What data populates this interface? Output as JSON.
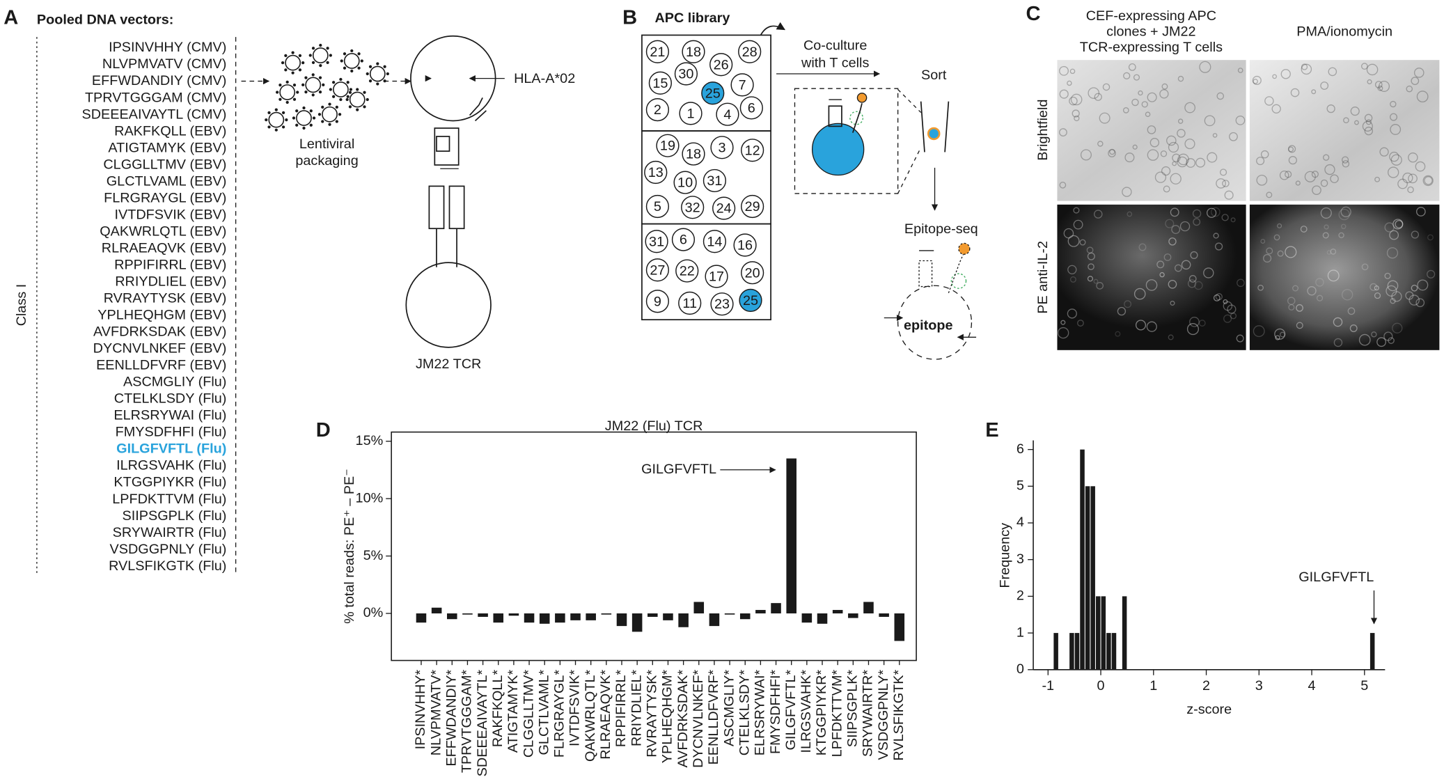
{
  "panels": {
    "A": {
      "letter": "A",
      "title": "Pooled DNA vectors:",
      "side_label": "Class I",
      "peptides": [
        {
          "text": "IPSINVHHY (CMV)"
        },
        {
          "text": "NLVPMVATV (CMV)"
        },
        {
          "text": "EFFWDANDIY (CMV)"
        },
        {
          "text": "TPRVTGGGAM (CMV)"
        },
        {
          "text": "SDEEEAIVAYTL (CMV)"
        },
        {
          "text": "RAKFKQLL (EBV)"
        },
        {
          "text": "ATIGTAMYK (EBV)"
        },
        {
          "text": "CLGGLLTMV (EBV)"
        },
        {
          "text": "GLCTLVAML (EBV)"
        },
        {
          "text": "FLRGRAYGL (EBV)"
        },
        {
          "text": "IVTDFSVIK (EBV)"
        },
        {
          "text": "QAKWRLQTL (EBV)"
        },
        {
          "text": "RLRAEAQVK (EBV)"
        },
        {
          "text": "RPPIFIRRL (EBV)"
        },
        {
          "text": "RRIYDLIEL (EBV)"
        },
        {
          "text": "RVRAYTYSK (EBV)"
        },
        {
          "text": "YPLHEQHGM (EBV)"
        },
        {
          "text": "AVFDRKSDAK (EBV)"
        },
        {
          "text": "DYCNVLNKEF (EBV)"
        },
        {
          "text": "EENLLDFVRF (EBV)"
        },
        {
          "text": "ASCMGLIY (Flu)"
        },
        {
          "text": "CTELKLSDY (Flu)"
        },
        {
          "text": "ELRSRYWAI (Flu)"
        },
        {
          "text": "FMYSDFHFI (Flu)"
        },
        {
          "text": "GILGFVFTL (Flu)",
          "color": "#29a3dc"
        },
        {
          "text": "ILRGSVAHK (Flu)"
        },
        {
          "text": "KTGGPIYKR (Flu)"
        },
        {
          "text": "LPFDKTTVM (Flu)"
        },
        {
          "text": "SIIPSGPLK (Flu)"
        },
        {
          "text": "SRYWAIRTR (Flu)"
        },
        {
          "text": "VSDGGPNLY (Flu)"
        },
        {
          "text": "RVLSFIKGTK (Flu)"
        }
      ],
      "packaging": [
        "Lentiviral",
        "packaging"
      ],
      "hla": "HLA-A*02",
      "tcr": "JM22 TCR"
    },
    "B": {
      "letter": "B",
      "title": "APC library",
      "coculture": [
        "Co-culture",
        "with T cells"
      ],
      "sort": "Sort",
      "epitope_seq": "Epitope-seq",
      "epitope": "epitope",
      "plates": [
        [
          {
            "label": "21"
          },
          {
            "label": "18"
          },
          {
            "label": "28"
          },
          {
            "label": "30"
          },
          {
            "label": "26"
          },
          {
            "label": "15"
          },
          {
            "label": "25",
            "fill": "#29a3dc"
          },
          {
            "label": "7"
          },
          {
            "label": "2"
          },
          {
            "label": "1"
          },
          {
            "label": "4"
          },
          {
            "label": "6"
          }
        ],
        [
          {
            "label": "19"
          },
          {
            "label": "18"
          },
          {
            "label": "3"
          },
          {
            "label": "12"
          },
          {
            "label": "13"
          },
          {
            "label": "10"
          },
          {
            "label": "31"
          },
          {
            "label": "5"
          },
          {
            "label": "32"
          },
          {
            "label": "24"
          },
          {
            "label": "29"
          }
        ],
        [
          {
            "label": "31"
          },
          {
            "label": "6"
          },
          {
            "label": "14"
          },
          {
            "label": "16"
          },
          {
            "label": "27"
          },
          {
            "label": "22"
          },
          {
            "label": "17"
          },
          {
            "label": "20"
          },
          {
            "label": "9"
          },
          {
            "label": "11"
          },
          {
            "label": "23"
          },
          {
            "label": "25",
            "fill": "#29a3dc"
          }
        ]
      ]
    },
    "C": {
      "letter": "C",
      "columns": [
        [
          "CEF-expressing APC",
          "clones + JM22",
          "TCR-expressing T cells"
        ],
        [
          "PMA/ionomycin"
        ]
      ],
      "rows": [
        "Brightfield",
        "PE anti-IL-2"
      ]
    }
  },
  "chart_data": [
    {
      "type": "bar",
      "label": "D",
      "title": "JM22 (Flu) TCR",
      "ylabel": "% total reads: PE⁺ – PE⁻",
      "color": "#1a1a1a",
      "annotation": "GILGFVFTL",
      "categories": [
        "IPSINVHHY*",
        "NLVPMVATV*",
        "EFFWDANDIY*",
        "TPRVTGGGAM*",
        "SDEEEAIVAYTL*",
        "RAKFKQLL*",
        "ATIGTAMYK*",
        "CLGGLLTMV*",
        "GLCTLVAML*",
        "FLRGRAYGL*",
        "IVTDFSVIK*",
        "QAKWRLQTL*",
        "RLRAEAQVK*",
        "RPPIFIRRL*",
        "RRIYDLIEL*",
        "RVRAYTYSK*",
        "YPLHEQHGM*",
        "AVFDRKSDAK*",
        "DYCNVLNKEF*",
        "EENLLDFVRF*",
        "ASCMGLIY*",
        "CTELKLSDY*",
        "ELRSRYWAI*",
        "FMYSDFHFI*",
        "GILGFVFTL*",
        "ILRGSVAHK*",
        "KTGGPIYKR*",
        "LPFDKTTVM*",
        "SIIPSGPLK*",
        "SRYWAIRTR*",
        "VSDGGPNLY*",
        "RVLSFIKGTK*"
      ],
      "values": [
        -0.8,
        0.5,
        -0.5,
        -0.1,
        -0.3,
        -0.8,
        -0.2,
        -0.8,
        -0.9,
        -0.8,
        -0.6,
        -0.6,
        -0.1,
        -1.1,
        -1.6,
        -0.3,
        -0.6,
        -1.2,
        1.0,
        -1.1,
        -0.1,
        -0.5,
        0.3,
        0.9,
        13.5,
        -0.8,
        -0.9,
        0.3,
        -0.4,
        1.0,
        -0.3,
        -2.4
      ],
      "ylim": [
        -4.1,
        15.8
      ],
      "yticks": [
        {
          "value": 0,
          "label": "0%"
        },
        {
          "value": 5,
          "label": "5%"
        },
        {
          "value": 10,
          "label": "10%"
        },
        {
          "value": 15,
          "label": "15%"
        }
      ]
    },
    {
      "type": "histogram",
      "label": "E",
      "xlabel": "z-score",
      "ylabel": "Frequency",
      "color": "#1a1a1a",
      "annotation": "GILGFVFTL",
      "bins": [
        -1,
        -0.9,
        -0.8,
        -0.7,
        -0.6,
        -0.5,
        -0.4,
        -0.3,
        -0.2,
        -0.1,
        0,
        0.1,
        0.2,
        0.3,
        0.4,
        0.5,
        0.6,
        0.7,
        0.8,
        0.9,
        1,
        1.1,
        1.2,
        1.3,
        1.4,
        1.5,
        1.6,
        1.7,
        1.8,
        1.9,
        2,
        2.1,
        2.2,
        2.3,
        2.4,
        2.5,
        2.6,
        2.7,
        2.8,
        2.9,
        3,
        3.1,
        3.2,
        3.3,
        3.4,
        3.5,
        3.6,
        3.7,
        3.8,
        3.9,
        4,
        4.1,
        4.2,
        4.3,
        4.4,
        4.5,
        4.6,
        4.7,
        4.8,
        4.9,
        5,
        5.1,
        5.2,
        5.3
      ],
      "counts": [
        0,
        1,
        0,
        0,
        1,
        1,
        6,
        5,
        5,
        2,
        2,
        1,
        1,
        0,
        2,
        0,
        0,
        0,
        0,
        0,
        0,
        0,
        0,
        0,
        0,
        0,
        0,
        0,
        0,
        0,
        0,
        0,
        0,
        0,
        0,
        0,
        0,
        0,
        0,
        0,
        0,
        0,
        0,
        0,
        0,
        0,
        0,
        0,
        0,
        0,
        0,
        0,
        0,
        0,
        0,
        0,
        0,
        0,
        0,
        0,
        0,
        1,
        0
      ],
      "xlim": [
        -1.28,
        5.39
      ],
      "ylim": [
        0,
        6.25
      ],
      "xticks": [
        -1,
        0,
        1,
        2,
        3,
        4,
        5
      ],
      "yticks": [
        0,
        1,
        2,
        3,
        4,
        5,
        6
      ]
    }
  ]
}
